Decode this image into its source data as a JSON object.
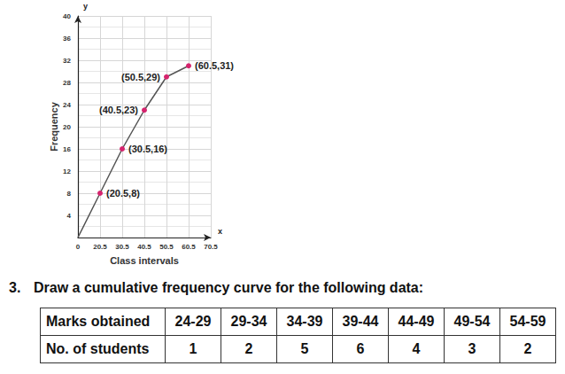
{
  "chart_data": {
    "type": "line",
    "x_label": "Class intervals",
    "y_label": "Frequency",
    "x_axis_name": "x",
    "y_axis_name": "y",
    "categories": [
      "0",
      "20.5",
      "30.5",
      "40.5",
      "50.5",
      "60.5",
      "70.5"
    ],
    "values": [
      0,
      8,
      16,
      23,
      29,
      31,
      null
    ],
    "value_labels": [
      null,
      "(20.5,8)",
      "(30.5,16)",
      "(40.5,23)",
      "(50.5,29)",
      "(60.5,31)",
      null
    ],
    "color": "#d6246e",
    "marker": "circle",
    "ylim": [
      0,
      40
    ],
    "yticks": [
      4,
      8,
      12,
      16,
      20,
      24,
      28,
      32,
      36,
      40
    ],
    "grid": true
  },
  "question": {
    "number": "3.",
    "text": "Draw a cumulative frequency curve for the following data:",
    "table": {
      "rows": [
        [
          "Marks obtained",
          "24-29",
          "29-34",
          "34-39",
          "39-44",
          "44-49",
          "49-54",
          "54-59"
        ],
        [
          "No. of students",
          1,
          2,
          5,
          6,
          4,
          3,
          2
        ]
      ]
    }
  }
}
